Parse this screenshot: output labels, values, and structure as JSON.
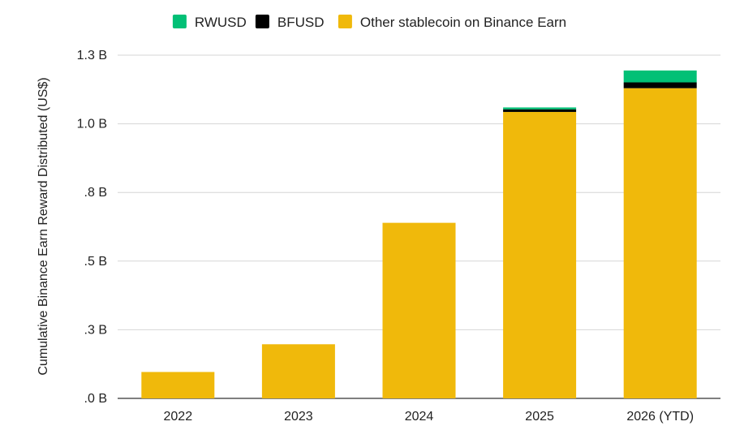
{
  "chart_data": {
    "type": "bar",
    "stacked": true,
    "ylabel": "Cumulative Binance Earn Reward Distributed (US$)",
    "xlabel": "",
    "ylim": [
      0,
      1.3
    ],
    "yticks": [
      {
        "value": 0.0,
        "label": ".0 B"
      },
      {
        "value": 0.26,
        "label": ".3 B"
      },
      {
        "value": 0.52,
        "label": ".5 B"
      },
      {
        "value": 0.78,
        "label": ".8 B"
      },
      {
        "value": 1.04,
        "label": "1.0 B"
      },
      {
        "value": 1.3,
        "label": "1.3 B"
      }
    ],
    "grid": true,
    "legend_position": "top-center",
    "categories": [
      "2022",
      "2023",
      "2024",
      "2025",
      "2026 (YTD)"
    ],
    "series": [
      {
        "name": "Other stablecoin on Binance Earn",
        "color": "#F0B90B",
        "values": [
          0.1,
          0.205,
          0.665,
          1.085,
          1.175
        ]
      },
      {
        "name": "BFUSD",
        "color": "#000000",
        "values": [
          0,
          0,
          0,
          0.01,
          0.022
        ]
      },
      {
        "name": "RWUSD",
        "color": "#02C076",
        "values": [
          0,
          0,
          0,
          0.007,
          0.045
        ]
      }
    ],
    "legend_order": [
      "RWUSD",
      "BFUSD",
      "Other stablecoin on Binance Earn"
    ]
  }
}
